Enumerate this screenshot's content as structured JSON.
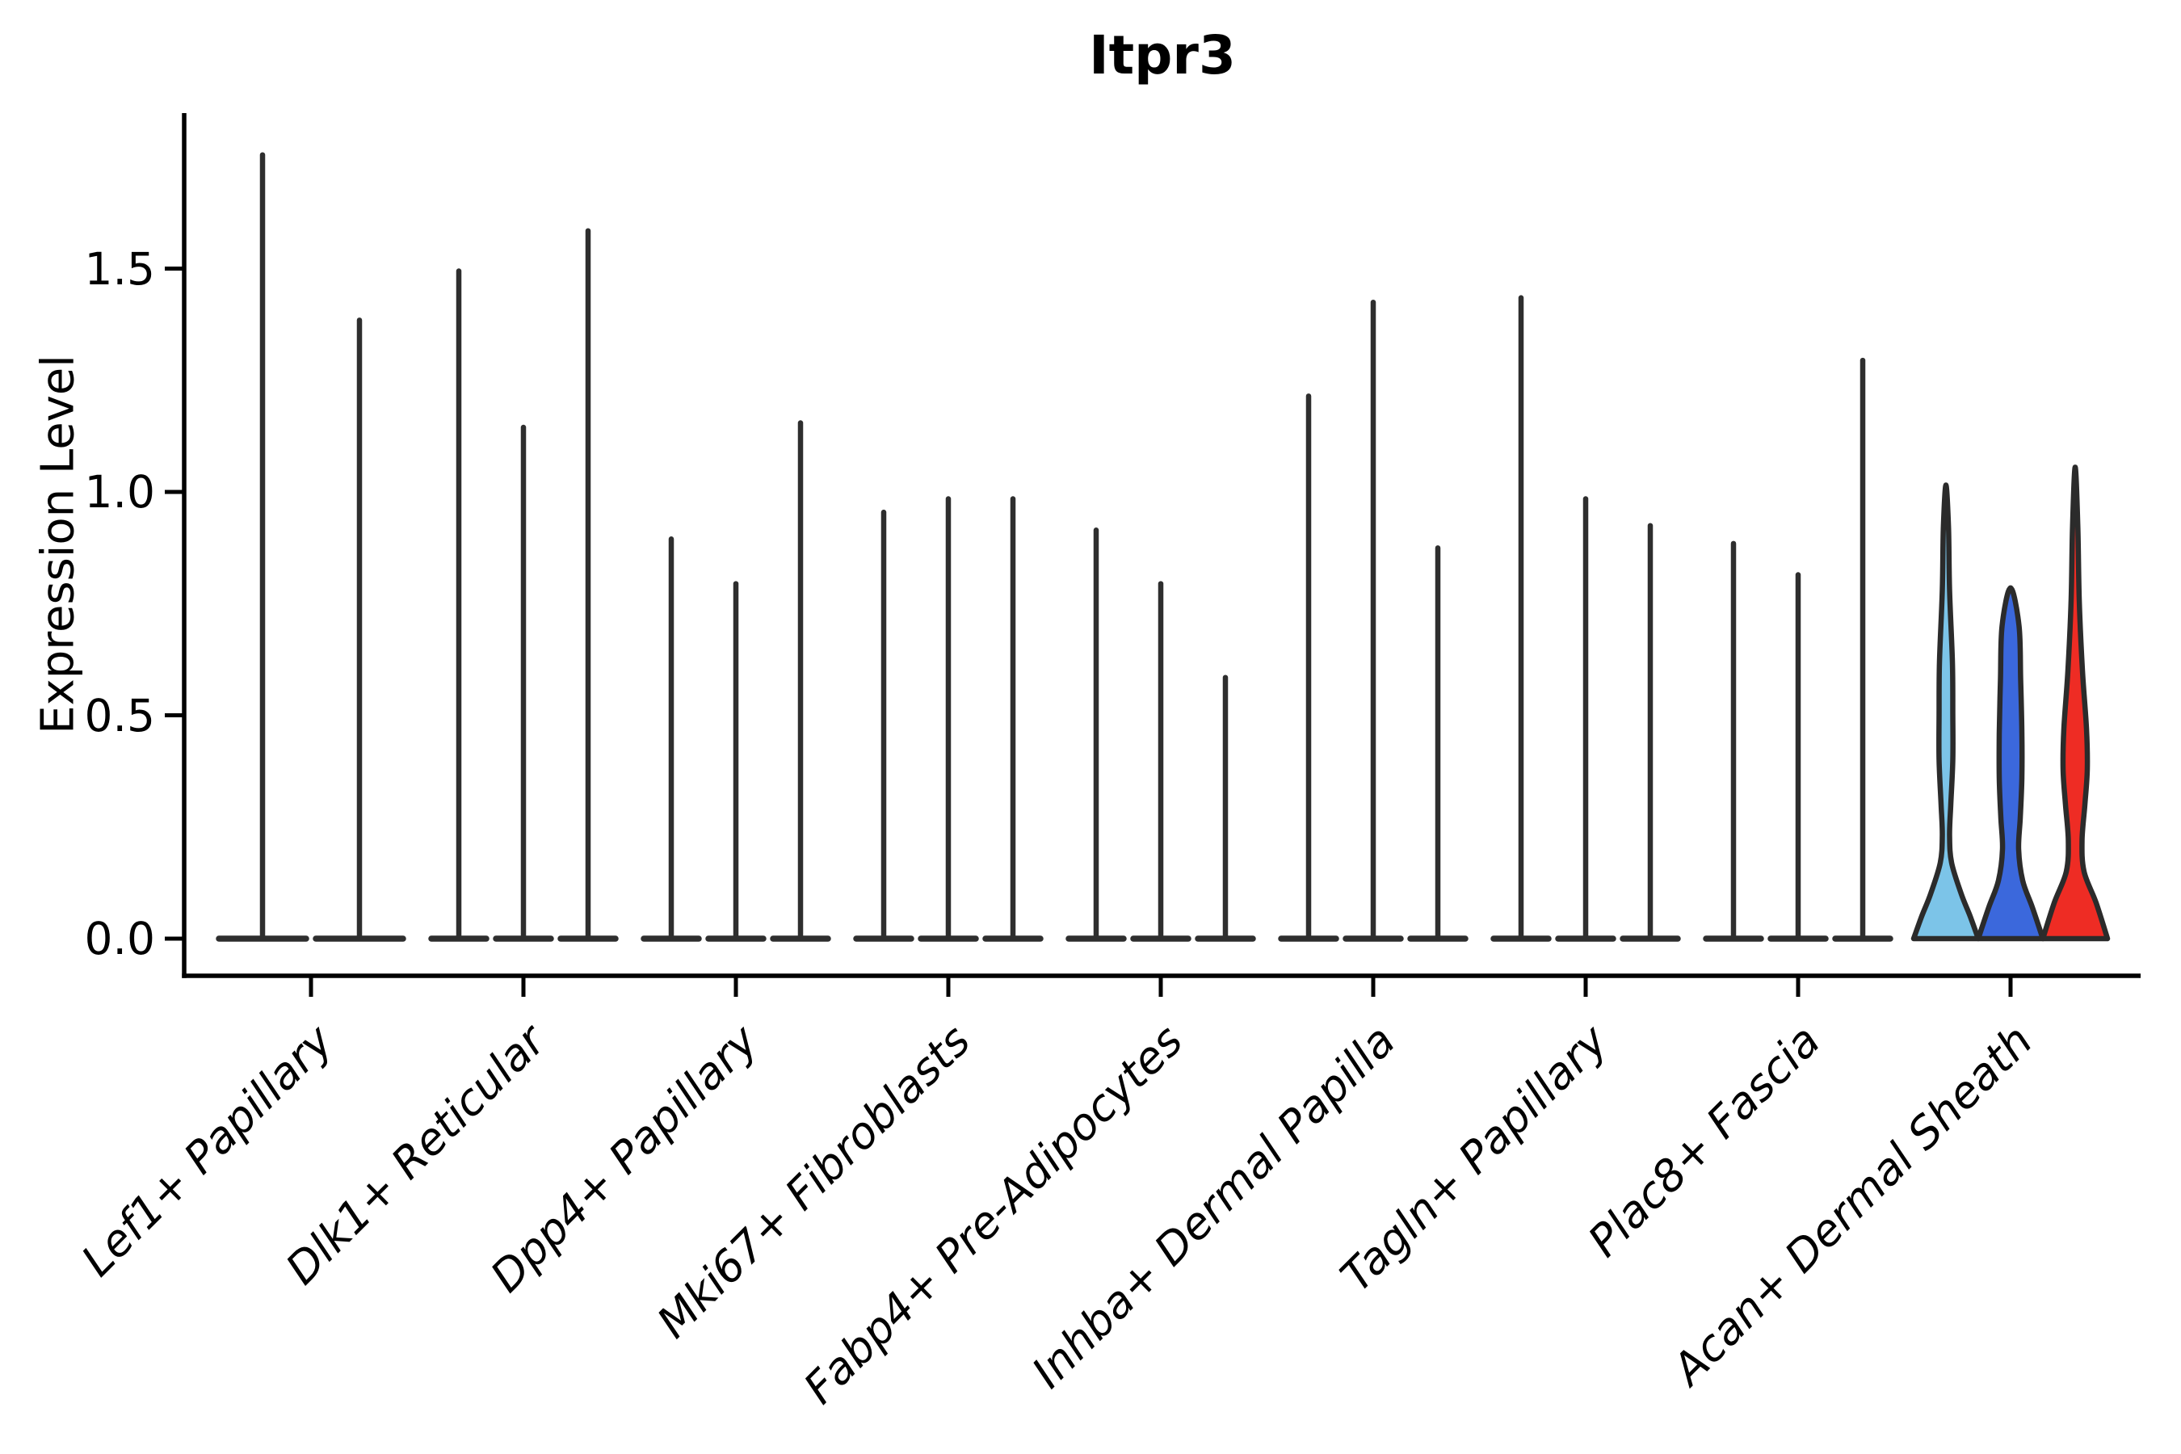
{
  "chart_data": {
    "type": "violin",
    "title": "Itpr3",
    "ylabel": "Expression Level",
    "xlabel": "",
    "legend_position": "none",
    "grid": false,
    "ylim": [
      -0.08,
      1.85
    ],
    "yticks": [
      "0.0",
      "0.5",
      "1.0",
      "1.5"
    ],
    "ytick_values": [
      0.0,
      0.5,
      1.0,
      1.5
    ],
    "categories": [
      "Lef1+ Papillary",
      "Dlk1+ Reticular",
      "Dpp4+ Papillary",
      "Mki67+ Fibroblasts",
      "Fabp4+ Pre-Adipocytes",
      "Inhba+ Dermal Papilla",
      "Tagln+ Papillary",
      "Plac8+ Fascia",
      "Acan+ Dermal Sheath"
    ],
    "groups": [
      {
        "category": "Lef1+ Papillary",
        "violins": [
          {
            "max": 1.76
          },
          {
            "max": 1.39
          }
        ]
      },
      {
        "category": "Dlk1+ Reticular",
        "violins": [
          {
            "max": 1.5
          },
          {
            "max": 1.15
          },
          {
            "max": 1.59
          }
        ]
      },
      {
        "category": "Dpp4+ Papillary",
        "violins": [
          {
            "max": 0.9
          },
          {
            "max": 0.8
          },
          {
            "max": 1.16
          }
        ]
      },
      {
        "category": "Mki67+ Fibroblasts",
        "violins": [
          {
            "max": 0.96
          },
          {
            "max": 0.99
          },
          {
            "max": 0.99
          }
        ]
      },
      {
        "category": "Fabp4+ Pre-Adipocytes",
        "violins": [
          {
            "max": 0.92
          },
          {
            "max": 0.8
          },
          {
            "max": 0.59
          }
        ]
      },
      {
        "category": "Inhba+ Dermal Papilla",
        "violins": [
          {
            "max": 1.22
          },
          {
            "max": 1.43
          },
          {
            "max": 0.88
          }
        ]
      },
      {
        "category": "Tagln+ Papillary",
        "violins": [
          {
            "max": 1.44
          },
          {
            "max": 0.99
          },
          {
            "max": 0.93
          }
        ]
      },
      {
        "category": "Plac8+ Fascia",
        "violins": [
          {
            "max": 0.89
          },
          {
            "max": 0.82
          },
          {
            "max": 1.3
          }
        ]
      },
      {
        "category": "Acan+ Dermal Sheath",
        "violins": [
          {
            "max": 1.01,
            "fill": "#7cc4e8",
            "profile": [
              [
                1.01,
                3
              ],
              [
                0.92,
                3.2
              ],
              [
                0.78,
                4.5
              ],
              [
                0.62,
                8.0
              ],
              [
                0.5,
                8.5
              ],
              [
                0.4,
                8.5
              ],
              [
                0.3,
                6.0
              ],
              [
                0.23,
                4.5
              ],
              [
                0.17,
                7.0
              ],
              [
                0.1,
                19
              ],
              [
                0.05,
                30
              ],
              [
                0.0,
                40
              ]
            ]
          },
          {
            "max": 0.78,
            "fill": "#3b68dc",
            "profile": [
              [
                0.78,
                6.5
              ],
              [
                0.7,
                10.5
              ],
              [
                0.58,
                12.5
              ],
              [
                0.46,
                14
              ],
              [
                0.36,
                14
              ],
              [
                0.27,
                12
              ],
              [
                0.2,
                10
              ],
              [
                0.13,
                15
              ],
              [
                0.07,
                27
              ],
              [
                0.0,
                40
              ]
            ]
          },
          {
            "max": 1.05,
            "fill": "#ee2c24",
            "profile": [
              [
                1.05,
                3
              ],
              [
                0.92,
                3.3
              ],
              [
                0.76,
                5
              ],
              [
                0.6,
                9
              ],
              [
                0.47,
                14
              ],
              [
                0.38,
                15
              ],
              [
                0.3,
                12
              ],
              [
                0.22,
                8.5
              ],
              [
                0.15,
                11
              ],
              [
                0.08,
                26
              ],
              [
                0.0,
                40
              ]
            ]
          }
        ]
      }
    ],
    "colors": {
      "spike": "#2e2e2e",
      "violin_outline": "#2b2b2b",
      "axis": "#000000",
      "light_blue": "#7cc4e8",
      "blue": "#3b68dc",
      "red": "#ee2c24"
    }
  }
}
